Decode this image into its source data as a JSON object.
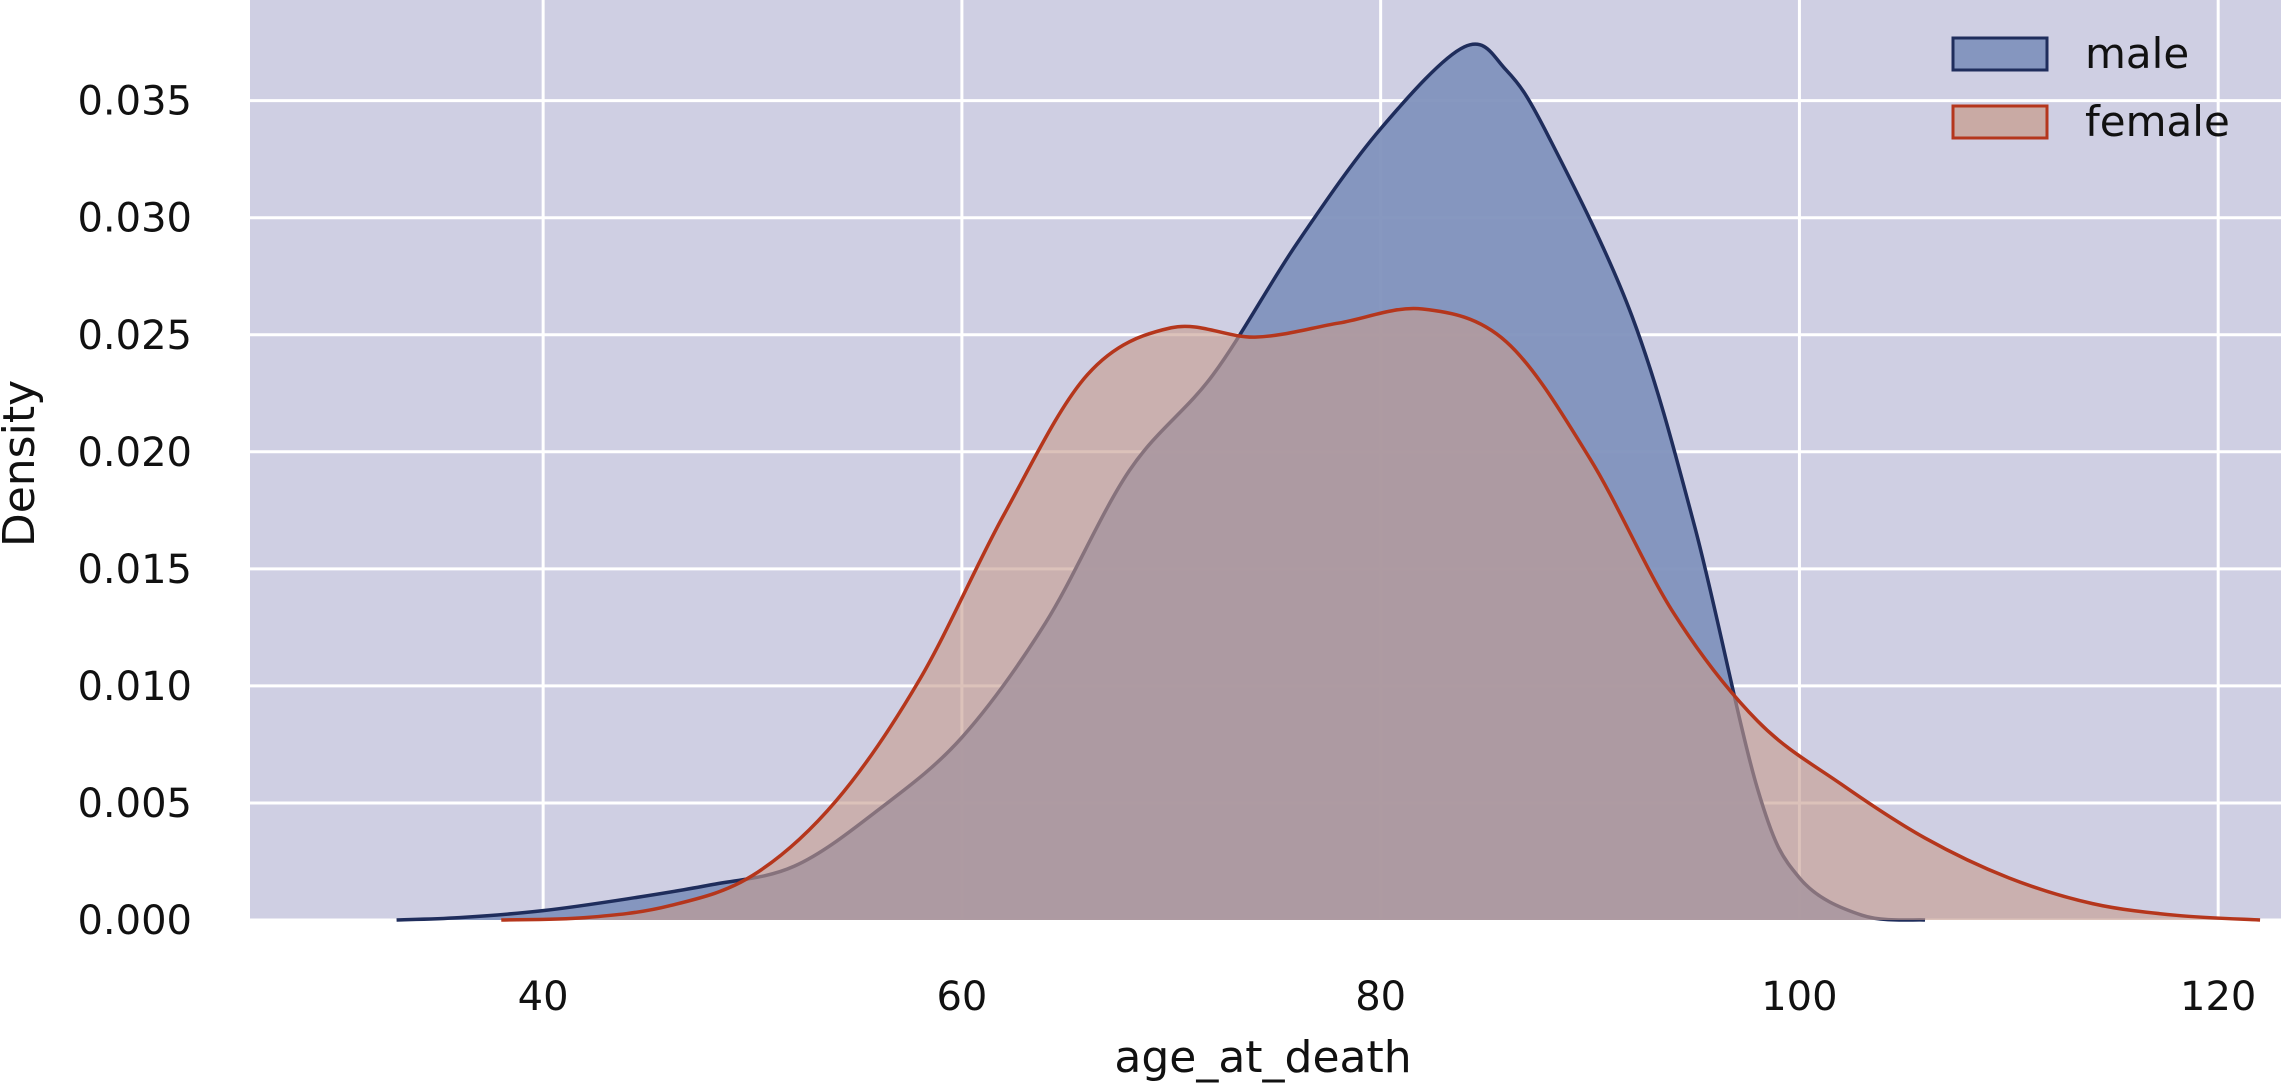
{
  "chart_data": {
    "type": "area",
    "title": "",
    "xlabel": "age_at_death",
    "ylabel": "Density",
    "xlim": [
      26,
      123
    ],
    "ylim": [
      0,
      0.0393
    ],
    "xticks": [
      40,
      60,
      80,
      100,
      120
    ],
    "yticks": [
      0.0,
      0.005,
      0.01,
      0.015,
      0.02,
      0.025,
      0.03,
      0.035
    ],
    "ytick_labels": [
      "0.000",
      "0.005",
      "0.010",
      "0.015",
      "0.020",
      "0.025",
      "0.030",
      "0.035"
    ],
    "grid": true,
    "legend_position": "top-right",
    "background_color": "#cfcfe3",
    "series": [
      {
        "name": "male",
        "fill_color": "#8192bd",
        "line_color": "#1f2d5c",
        "x": [
          33,
          36,
          40,
          44,
          48,
          52,
          56,
          60,
          64,
          68,
          72,
          76,
          80,
          84,
          86,
          88,
          92,
          95,
          98,
          100,
          103,
          106
        ],
        "y": [
          0.0,
          0.0001,
          0.0004,
          0.0009,
          0.0015,
          0.0023,
          0.0047,
          0.0078,
          0.0127,
          0.0192,
          0.0233,
          0.0289,
          0.0338,
          0.0373,
          0.0363,
          0.0335,
          0.0258,
          0.0168,
          0.0056,
          0.0018,
          0.0002,
          0.0
        ]
      },
      {
        "name": "female",
        "fill_color": "#c79d8f",
        "line_color": "#b5361c",
        "x": [
          38,
          42,
          46,
          50,
          54,
          58,
          62,
          66,
          70,
          74,
          78,
          82,
          86,
          90,
          94,
          98,
          102,
          106,
          110,
          114,
          118,
          122
        ],
        "y": [
          0.0,
          0.0001,
          0.0006,
          0.0019,
          0.0051,
          0.0103,
          0.0173,
          0.0233,
          0.0253,
          0.0249,
          0.0255,
          0.0261,
          0.0247,
          0.0197,
          0.0131,
          0.0085,
          0.0058,
          0.0035,
          0.0018,
          0.0007,
          0.0002,
          0.0
        ]
      }
    ]
  }
}
